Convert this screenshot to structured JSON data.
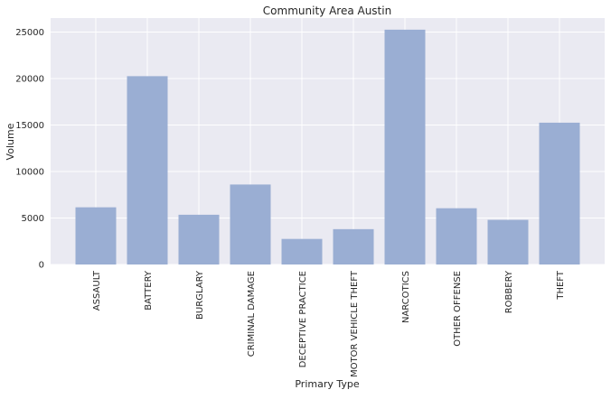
{
  "chart_data": {
    "type": "bar",
    "title": "Community Area Austin",
    "xlabel": "Primary Type",
    "ylabel": "Volume",
    "categories": [
      "ASSAULT",
      "BATTERY",
      "BURGLARY",
      "CRIMINAL DAMAGE",
      "DECEPTIVE PRACTICE",
      "MOTOR VEHICLE THEFT",
      "NARCOTICS",
      "OTHER OFFENSE",
      "ROBBERY",
      "THEFT"
    ],
    "values": [
      6150,
      20250,
      5350,
      8600,
      2750,
      3800,
      25250,
      6050,
      4800,
      15250
    ],
    "ylim": [
      0,
      26500
    ],
    "yticks": [
      0,
      5000,
      10000,
      15000,
      20000,
      25000
    ],
    "grid": true,
    "colors": {
      "background": "#EAEAF2",
      "bar": "#9AAED3",
      "grid": "#FFFFFF"
    }
  }
}
